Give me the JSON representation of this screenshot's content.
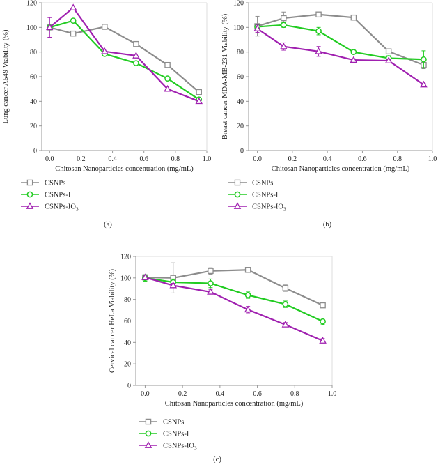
{
  "colors": {
    "CSNPs": "#8c8c8c",
    "CSNPs-I": "#22cc22",
    "CSNPs-IO3": "#a020b0",
    "axis": "#999999",
    "text": "#222222"
  },
  "chart_data": [
    {
      "type": "line",
      "panel_label": "(a)",
      "xlabel": "Chitosan Nanoparticles concentration (mg/mL)",
      "ylabel": "Lung cancer A549 Viability (%)",
      "xlim": [
        -0.05,
        1.0
      ],
      "ylim": [
        0,
        120
      ],
      "xticks": [
        0.0,
        0.2,
        0.4,
        0.6,
        0.8,
        1.0
      ],
      "xtick_labels": [
        "0.0",
        "0.2",
        "0.4",
        "0.6",
        "0.8",
        "1.0"
      ],
      "yticks": [
        0,
        20,
        40,
        60,
        80,
        100,
        120
      ],
      "ytick_labels": [
        "0",
        "20",
        "40",
        "60",
        "80",
        "100",
        "120"
      ],
      "x": [
        0.0,
        0.15,
        0.35,
        0.55,
        0.75,
        0.95
      ],
      "series": [
        {
          "name": "CSNPs",
          "marker": "square",
          "values": [
            100,
            95,
            100.5,
            86.5,
            69.5,
            47.5
          ],
          "errors": [
            0,
            0,
            0,
            0,
            0,
            0
          ]
        },
        {
          "name": "CSNPs-I",
          "marker": "circle",
          "values": [
            100,
            105.5,
            78.5,
            71,
            58.5,
            41.5
          ],
          "errors": [
            0,
            0,
            0,
            0,
            0,
            0
          ]
        },
        {
          "name": "CSNPs-IO3",
          "marker": "triangle",
          "values": [
            100,
            116,
            80.5,
            77,
            50,
            40
          ],
          "errors": [
            8,
            0,
            0,
            0,
            0,
            0
          ]
        }
      ],
      "legend": [
        {
          "label": "CSNPs",
          "sub": ""
        },
        {
          "label": "CSNPs-I",
          "sub": ""
        },
        {
          "label": "CSNPs-IO",
          "sub": "3"
        }
      ]
    },
    {
      "type": "line",
      "panel_label": "(b)",
      "xlabel": "Chitosan Nanoparticles concentration (mg/mL)",
      "ylabel": "Breast cancer MDA-MB-231 Viability (%)",
      "xlim": [
        -0.05,
        1.0
      ],
      "ylim": [
        0,
        120
      ],
      "xticks": [
        0.0,
        0.2,
        0.4,
        0.6,
        0.8,
        1.0
      ],
      "xtick_labels": [
        "0.0",
        "0.2",
        "0.4",
        "0.6",
        "0.8",
        "1.0"
      ],
      "yticks": [
        0,
        20,
        40,
        60,
        80,
        100,
        120
      ],
      "ytick_labels": [
        "0",
        "20",
        "40",
        "60",
        "80",
        "100",
        "120"
      ],
      "x": [
        0.0,
        0.15,
        0.35,
        0.55,
        0.75,
        0.95
      ],
      "series": [
        {
          "name": "CSNPs",
          "marker": "square",
          "values": [
            101,
            107.5,
            110.5,
            108,
            80.5,
            69.5
          ],
          "errors": [
            8,
            5,
            2,
            2,
            2,
            3
          ]
        },
        {
          "name": "CSNPs-I",
          "marker": "circle",
          "values": [
            100.5,
            102,
            97,
            80,
            75,
            74
          ],
          "errors": [
            2,
            2,
            3,
            1,
            2,
            7
          ]
        },
        {
          "name": "CSNPs-IO3",
          "marker": "triangle",
          "values": [
            99,
            84.5,
            80.5,
            73.5,
            73,
            53.5
          ],
          "errors": [
            3,
            3,
            4,
            1,
            1,
            1
          ]
        }
      ],
      "legend": [
        {
          "label": "CSNPs",
          "sub": ""
        },
        {
          "label": "CSNPs-I",
          "sub": ""
        },
        {
          "label": "CSNPs-IO",
          "sub": "3"
        }
      ]
    },
    {
      "type": "line",
      "panel_label": "(c)",
      "xlabel": "Chitosan Nanoparticles concentration (mg/mL)",
      "ylabel": "Cervical cancer HeLa Viability (%)",
      "xlim": [
        -0.05,
        1.0
      ],
      "ylim": [
        0,
        120
      ],
      "xticks": [
        0.0,
        0.2,
        0.4,
        0.6,
        0.8,
        1.0
      ],
      "xtick_labels": [
        "0.0",
        "0.2",
        "0.4",
        "0.6",
        "0.8",
        "1.0"
      ],
      "yticks": [
        0,
        20,
        40,
        60,
        80,
        100,
        120
      ],
      "ytick_labels": [
        "0",
        "20",
        "40",
        "60",
        "80",
        "100",
        "120"
      ],
      "x": [
        0.0,
        0.15,
        0.35,
        0.55,
        0.75,
        0.95
      ],
      "series": [
        {
          "name": "CSNPs",
          "marker": "square",
          "values": [
            100.5,
            100,
            106.5,
            107.5,
            90.5,
            74.5
          ],
          "errors": [
            2,
            14,
            3,
            1,
            3,
            1
          ]
        },
        {
          "name": "CSNPs-I",
          "marker": "circle",
          "values": [
            100,
            96,
            95,
            84,
            75.5,
            59.5
          ],
          "errors": [
            3,
            3,
            4,
            3,
            3,
            3
          ]
        },
        {
          "name": "CSNPs-IO3",
          "marker": "triangle",
          "values": [
            100.5,
            93,
            87,
            70.5,
            56.5,
            41.5
          ],
          "errors": [
            2,
            2,
            2,
            3,
            2,
            2
          ]
        }
      ],
      "legend": [
        {
          "label": "CSNPs",
          "sub": ""
        },
        {
          "label": "CSNPs-I",
          "sub": ""
        },
        {
          "label": "CSNPs-IO",
          "sub": "3"
        }
      ]
    }
  ]
}
